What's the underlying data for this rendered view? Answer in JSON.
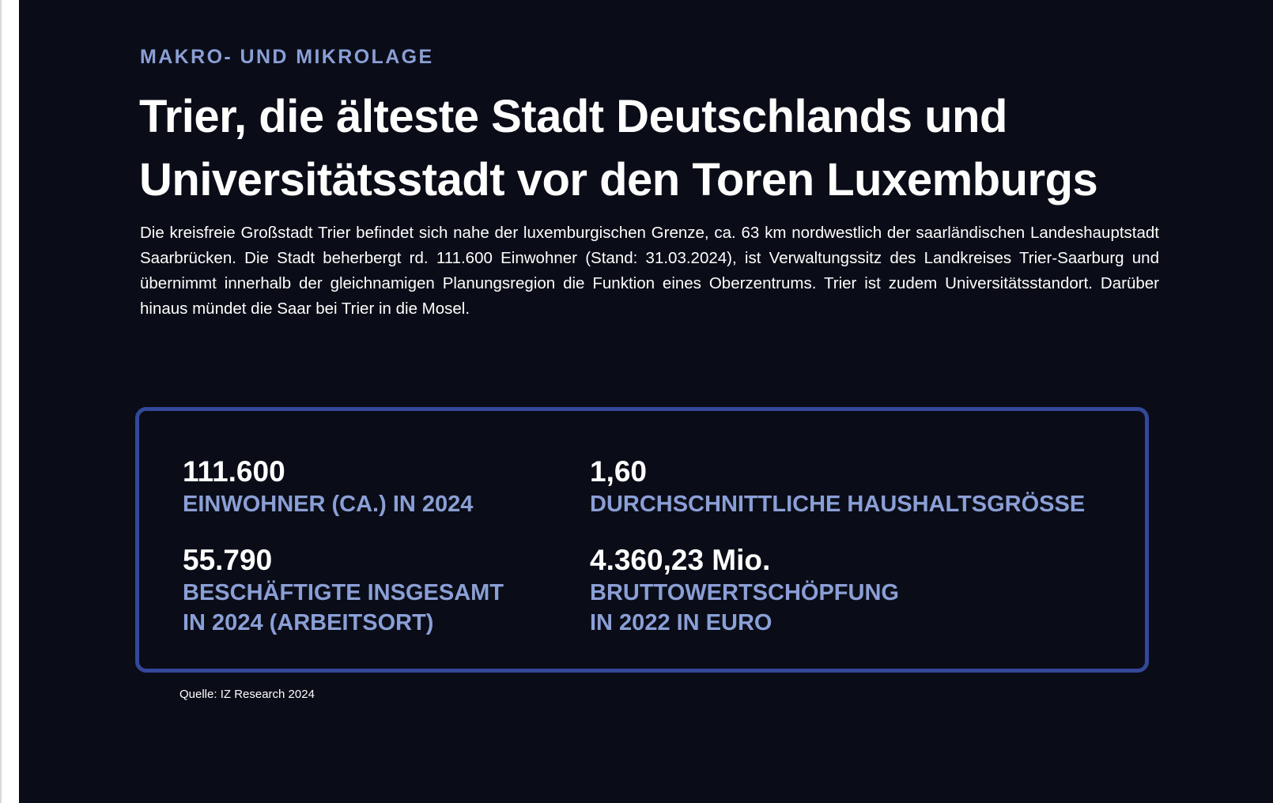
{
  "section": {
    "kicker": "MAKRO- UND MIKROLAGE",
    "headline": "Trier, die älteste Stadt Deutschlands und Universitätsstadt vor den Toren Luxemburgs",
    "intro": "Die kreisfreie Großstadt Trier befindet sich nahe der luxemburgischen Grenze, ca. 63 km nordwestlich der saarländischen Landeshauptstadt Saarbrücken. Die Stadt beherbergt rd. 111.600 Einwohner (Stand: 31.03.2024), ist Verwaltungssitz des Landkreises Trier-Saarburg und übernimmt innerhalb der gleichnamigen Planungsregion die Funktion eines Oberzentrums. Trier ist zudem Universitätsstandort. Darüber hinaus mündet die Saar bei Trier in die Mosel."
  },
  "facts": [
    {
      "value": "111.600",
      "label": "EINWOHNER (CA.) IN 2024"
    },
    {
      "value": "1,60",
      "label": "DURCHSCHNITTLICHE HAUSHALTSGRÖSSE"
    },
    {
      "value": "55.790",
      "label": "BESCHÄFTIGTE INSGESAMT\nIN 2024 (ARBEITSORT)"
    },
    {
      "value": "4.360,23 Mio.",
      "label": "BRUTTOWERTSCHÖPFUNG\nIN 2022 IN EURO"
    }
  ],
  "source": "Quelle: IZ Research 2024",
  "colors": {
    "background": "#0a0d17",
    "accent": "#8a9fd6",
    "box_border": "#34489a",
    "text": "#ffffff"
  }
}
